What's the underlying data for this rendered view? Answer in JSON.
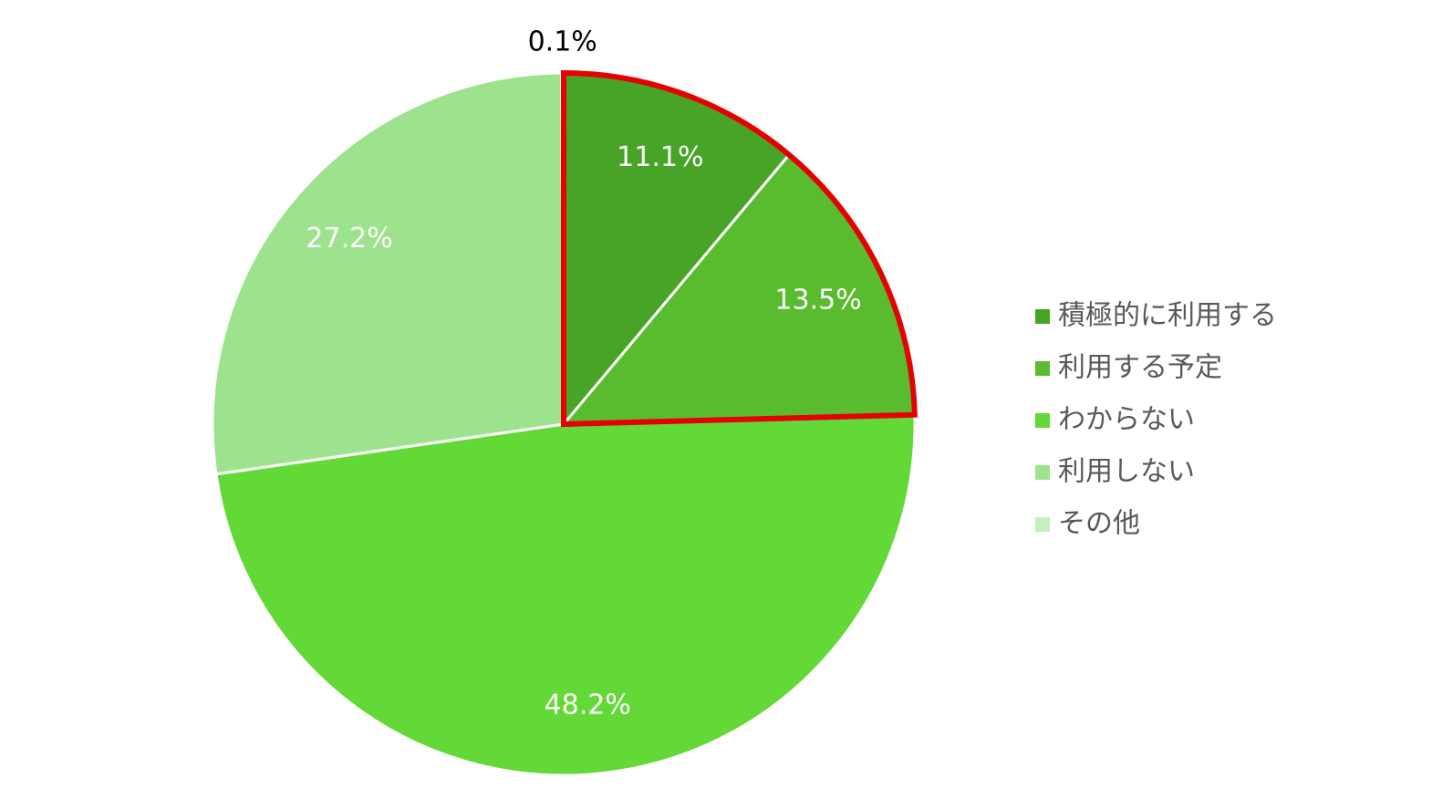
{
  "chart_data": {
    "type": "pie",
    "categories": [
      "積極的に利用する",
      "利用する予定",
      "わからない",
      "利用しない",
      "その他"
    ],
    "values": [
      11.1,
      13.5,
      48.2,
      27.2,
      0.1
    ],
    "value_labels": [
      "11.1%",
      "13.5%",
      "48.2%",
      "27.2%",
      "0.1%"
    ],
    "colors": [
      "#48a427",
      "#58bc2e",
      "#63d937",
      "#9de38d",
      "#c5efbd"
    ],
    "legend": "right"
  }
}
